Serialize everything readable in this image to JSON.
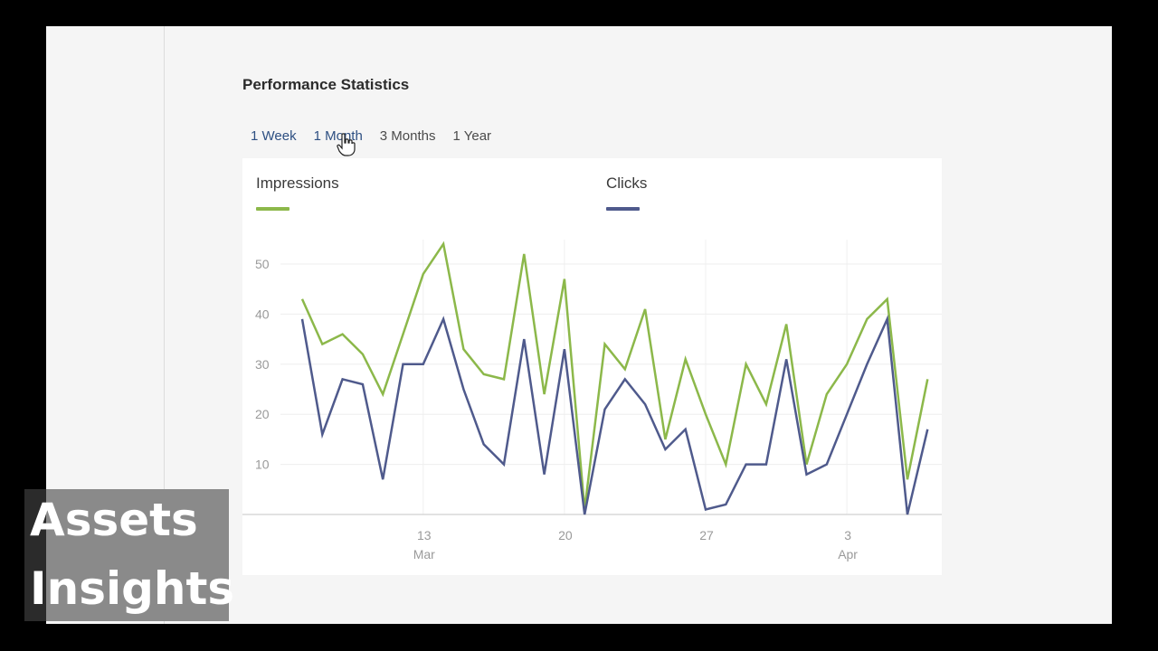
{
  "page": {
    "title": "Performance Statistics",
    "tabs": [
      {
        "label": "1 Week",
        "active": false
      },
      {
        "label": "1 Month",
        "active": true
      },
      {
        "label": "3 Months",
        "active": false
      },
      {
        "label": "1 Year",
        "active": false
      }
    ]
  },
  "legend": [
    {
      "label": "Impressions",
      "color": "#8cb84a"
    },
    {
      "label": "Clicks",
      "color": "#4f5a8c"
    }
  ],
  "overlay": {
    "line1": "Assets",
    "line2": "Insights"
  },
  "chart_data": {
    "type": "line",
    "title": "Performance Statistics",
    "xlabel": "",
    "ylabel": "",
    "ylim": [
      0,
      55
    ],
    "yticks": [
      10,
      20,
      30,
      40,
      50
    ],
    "grid": true,
    "legend_position": "top",
    "x_tick_labels": [
      {
        "day": "13",
        "month": "Mar",
        "index": 6
      },
      {
        "day": "20",
        "month": "",
        "index": 13
      },
      {
        "day": "27",
        "month": "",
        "index": 20
      },
      {
        "day": "3",
        "month": "Apr",
        "index": 27
      }
    ],
    "x": [
      "Mar 7",
      "Mar 8",
      "Mar 9",
      "Mar 10",
      "Mar 11",
      "Mar 12",
      "Mar 13",
      "Mar 14",
      "Mar 15",
      "Mar 16",
      "Mar 17",
      "Mar 18",
      "Mar 19",
      "Mar 20",
      "Mar 21",
      "Mar 22",
      "Mar 23",
      "Mar 24",
      "Mar 25",
      "Mar 26",
      "Mar 27",
      "Mar 28",
      "Mar 29",
      "Mar 30",
      "Mar 31",
      "Apr 1",
      "Apr 2",
      "Apr 3",
      "Apr 4",
      "Apr 5",
      "Apr 6",
      "Apr 7"
    ],
    "series": [
      {
        "name": "Impressions",
        "color": "#8cb84a",
        "values": [
          43,
          34,
          36,
          32,
          24,
          36,
          48,
          54,
          33,
          28,
          27,
          52,
          24,
          47,
          1,
          34,
          29,
          41,
          15,
          31,
          20,
          10,
          30,
          22,
          38,
          10,
          24,
          30,
          39,
          43,
          7,
          27
        ]
      },
      {
        "name": "Clicks",
        "color": "#4f5a8c",
        "values": [
          39,
          16,
          27,
          26,
          7,
          30,
          30,
          39,
          25,
          14,
          10,
          35,
          8,
          33,
          0,
          21,
          27,
          22,
          13,
          17,
          1,
          2,
          10,
          10,
          31,
          8,
          10,
          20,
          30,
          39,
          0,
          17
        ]
      }
    ]
  }
}
